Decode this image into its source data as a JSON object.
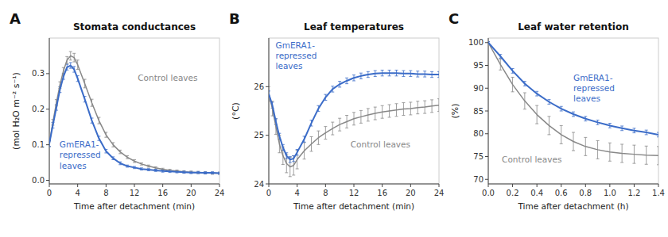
{
  "chart_data": [
    {
      "type": "line",
      "title": "Stomata conductances",
      "x_label": "Time after detachment (min)",
      "y_label": "(mol H₂O m⁻² s⁻¹)",
      "annotations": [
        "A"
      ],
      "xlim": [
        0,
        24
      ],
      "ylim": [
        -0.01,
        0.4
      ],
      "xticks": [
        0,
        4,
        8,
        12,
        16,
        20,
        24
      ],
      "yticks": [
        {
          "value": 0,
          "label": "0.0"
        },
        0.1,
        0.2,
        0.3
      ],
      "x": [
        0,
        0.5,
        1,
        1.5,
        2,
        2.5,
        3,
        3.5,
        4,
        5,
        6,
        7,
        8,
        9,
        10,
        11,
        12,
        13,
        14,
        15,
        16,
        17,
        18,
        19,
        20,
        21,
        22,
        23,
        24
      ],
      "series": [
        {
          "name": "Control leaves",
          "color": "#888888",
          "values": [
            0.103,
            0.163,
            0.218,
            0.268,
            0.308,
            0.338,
            0.35,
            0.345,
            0.325,
            0.272,
            0.218,
            0.168,
            0.128,
            0.1,
            0.08,
            0.065,
            0.054,
            0.046,
            0.04,
            0.035,
            0.031,
            0.028,
            0.026,
            0.024,
            0.023,
            0.022,
            0.021,
            0.02,
            0.02
          ],
          "errors": [
            0.008,
            0.008,
            0.009,
            0.009,
            0.009,
            0.01,
            0.012,
            0.012,
            0.013,
            0.012,
            0.01,
            0.009,
            0.007,
            0.006,
            0.005,
            0.004,
            0.004,
            0.003,
            0.003,
            0.003,
            0.003,
            0.003,
            0.003,
            0.003,
            0.003,
            0.003,
            0.003,
            0.003,
            0.003
          ]
        },
        {
          "name": "GmERA1-\nrepressed\nleaves",
          "color": "#3B6CC8",
          "values": [
            0.103,
            0.155,
            0.205,
            0.255,
            0.292,
            0.318,
            0.323,
            0.312,
            0.286,
            0.228,
            0.168,
            0.118,
            0.082,
            0.062,
            0.048,
            0.04,
            0.036,
            0.032,
            0.03,
            0.028,
            0.026,
            0.025,
            0.024,
            0.023,
            0.022,
            0.022,
            0.021,
            0.021,
            0.02
          ],
          "errors": [
            0.008,
            0.008,
            0.008,
            0.008,
            0.008,
            0.008,
            0.008,
            0.008,
            0.008,
            0.008,
            0.007,
            0.006,
            0.005,
            0.004,
            0.004,
            0.003,
            0.003,
            0.003,
            0.003,
            0.003,
            0.003,
            0.003,
            0.003,
            0.003,
            0.003,
            0.003,
            0.003,
            0.003,
            0.003
          ]
        }
      ]
    },
    {
      "type": "line",
      "title": "Leaf temperatures",
      "x_label": "Time after detachment (min)",
      "y_label": "(°C)",
      "annotations": [
        "B"
      ],
      "xlim": [
        0,
        24
      ],
      "ylim": [
        24,
        27.0
      ],
      "xticks": [
        0,
        4,
        8,
        12,
        16,
        20,
        24
      ],
      "yticks": [
        24,
        25,
        26
      ],
      "x": [
        0,
        0.5,
        1,
        1.5,
        2,
        2.5,
        3,
        3.5,
        4,
        5,
        6,
        7,
        8,
        9,
        10,
        11,
        12,
        13,
        14,
        15,
        16,
        17,
        18,
        19,
        20,
        21,
        22,
        23,
        24
      ],
      "series": [
        {
          "name": "Control leaves",
          "color": "#888888",
          "values": [
            25.85,
            25.55,
            25.18,
            24.82,
            24.58,
            24.42,
            24.35,
            24.38,
            24.5,
            24.68,
            24.82,
            24.95,
            25.05,
            25.14,
            25.22,
            25.28,
            25.34,
            25.38,
            25.42,
            25.45,
            25.48,
            25.5,
            25.52,
            25.54,
            25.55,
            25.57,
            25.58,
            25.6,
            25.62
          ],
          "errors": [
            0.15,
            0.15,
            0.16,
            0.18,
            0.18,
            0.19,
            0.2,
            0.2,
            0.19,
            0.17,
            0.15,
            0.14,
            0.13,
            0.13,
            0.13,
            0.13,
            0.13,
            0.13,
            0.13,
            0.13,
            0.13,
            0.13,
            0.13,
            0.13,
            0.13,
            0.13,
            0.13,
            0.13,
            0.13
          ]
        },
        {
          "name": "GmERA1-\nrepressed\nleaves",
          "color": "#3B6CC8",
          "values": [
            25.85,
            25.62,
            25.28,
            24.98,
            24.75,
            24.58,
            24.5,
            24.52,
            24.65,
            24.92,
            25.25,
            25.55,
            25.78,
            25.95,
            26.05,
            26.12,
            26.18,
            26.22,
            26.25,
            26.27,
            26.28,
            26.28,
            26.28,
            26.27,
            26.27,
            26.26,
            26.26,
            26.25,
            26.25
          ],
          "errors": [
            0.06,
            0.06,
            0.06,
            0.06,
            0.06,
            0.06,
            0.06,
            0.06,
            0.06,
            0.06,
            0.06,
            0.06,
            0.06,
            0.06,
            0.06,
            0.06,
            0.06,
            0.06,
            0.06,
            0.06,
            0.06,
            0.06,
            0.06,
            0.06,
            0.06,
            0.06,
            0.06,
            0.06,
            0.06
          ]
        }
      ]
    },
    {
      "type": "line",
      "title": "Leaf water retention",
      "x_label": "Time after detachment (h)",
      "y_label": "(%)",
      "annotations": [
        "C"
      ],
      "xlim": [
        0,
        1.4
      ],
      "ylim": [
        69,
        101
      ],
      "xticks": [
        {
          "value": 0,
          "label": "0.0"
        },
        0.2,
        0.4,
        0.6,
        0.8,
        {
          "value": 1.0,
          "label": "1.0"
        },
        1.2,
        1.4
      ],
      "yticks": [
        70,
        75,
        80,
        85,
        90,
        95,
        100
      ],
      "x": [
        0,
        0.1,
        0.2,
        0.3,
        0.4,
        0.5,
        0.6,
        0.7,
        0.8,
        0.9,
        1.0,
        1.1,
        1.2,
        1.3,
        1.4
      ],
      "series": [
        {
          "name": "Control leaves",
          "color": "#888888",
          "values": [
            100,
            95.2,
            90.8,
            87.2,
            84.2,
            81.8,
            79.8,
            78.3,
            77.2,
            76.5,
            76.0,
            75.7,
            75.5,
            75.3,
            75.2
          ],
          "errors": [
            0.2,
            1.2,
            1.6,
            1.8,
            2.0,
            2.0,
            2.0,
            2.0,
            2.0,
            2.0,
            2.0,
            2.0,
            2.0,
            2.0,
            2.0
          ]
        },
        {
          "name": "GmERA1-\nrepressed\nleaves",
          "color": "#3B6CC8",
          "values": [
            100,
            97.0,
            93.8,
            91.0,
            88.8,
            87.0,
            85.5,
            84.3,
            83.3,
            82.5,
            81.8,
            81.2,
            80.7,
            80.3,
            79.8
          ],
          "errors": [
            0.2,
            0.4,
            0.5,
            0.5,
            0.5,
            0.5,
            0.5,
            0.5,
            0.5,
            0.5,
            0.5,
            0.5,
            0.5,
            0.5,
            0.5
          ]
        }
      ]
    }
  ]
}
